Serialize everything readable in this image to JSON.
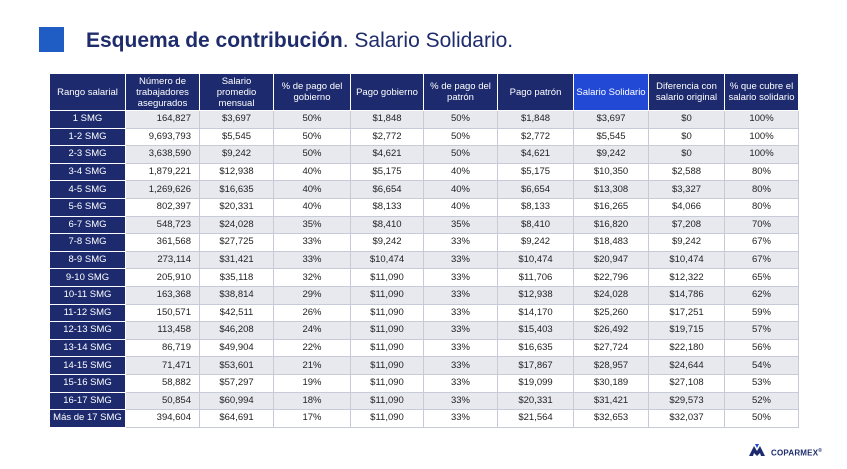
{
  "title": {
    "bold": "Esquema de contribución",
    "rest": ". Salario Solidario."
  },
  "headers": [
    "Rango salarial",
    "Número de trabajadores asegurados",
    "Salario promedio mensual",
    "% de pago del gobierno",
    "Pago gobierno",
    "% de pago del patrón",
    "Pago patrón",
    "Salario Solidario",
    "Diferencia con salario original",
    "% que cubre el salario solidario"
  ],
  "rows": [
    [
      "1 SMG",
      "164,827",
      "$3,697",
      "50%",
      "$1,848",
      "50%",
      "$1,848",
      "$3,697",
      "$0",
      "100%"
    ],
    [
      "1-2 SMG",
      "9,693,793",
      "$5,545",
      "50%",
      "$2,772",
      "50%",
      "$2,772",
      "$5,545",
      "$0",
      "100%"
    ],
    [
      "2-3 SMG",
      "3,638,590",
      "$9,242",
      "50%",
      "$4,621",
      "50%",
      "$4,621",
      "$9,242",
      "$0",
      "100%"
    ],
    [
      "3-4 SMG",
      "1,879,221",
      "$12,938",
      "40%",
      "$5,175",
      "40%",
      "$5,175",
      "$10,350",
      "$2,588",
      "80%"
    ],
    [
      "4-5 SMG",
      "1,269,626",
      "$16,635",
      "40%",
      "$6,654",
      "40%",
      "$6,654",
      "$13,308",
      "$3,327",
      "80%"
    ],
    [
      "5-6 SMG",
      "802,397",
      "$20,331",
      "40%",
      "$8,133",
      "40%",
      "$8,133",
      "$16,265",
      "$4,066",
      "80%"
    ],
    [
      "6-7 SMG",
      "548,723",
      "$24,028",
      "35%",
      "$8,410",
      "35%",
      "$8,410",
      "$16,820",
      "$7,208",
      "70%"
    ],
    [
      "7-8 SMG",
      "361,568",
      "$27,725",
      "33%",
      "$9,242",
      "33%",
      "$9,242",
      "$18,483",
      "$9,242",
      "67%"
    ],
    [
      "8-9 SMG",
      "273,114",
      "$31,421",
      "33%",
      "$10,474",
      "33%",
      "$10,474",
      "$20,947",
      "$10,474",
      "67%"
    ],
    [
      "9-10 SMG",
      "205,910",
      "$35,118",
      "32%",
      "$11,090",
      "33%",
      "$11,706",
      "$22,796",
      "$12,322",
      "65%"
    ],
    [
      "10-11 SMG",
      "163,368",
      "$38,814",
      "29%",
      "$11,090",
      "33%",
      "$12,938",
      "$24,028",
      "$14,786",
      "62%"
    ],
    [
      "11-12 SMG",
      "150,571",
      "$42,511",
      "26%",
      "$11,090",
      "33%",
      "$14,170",
      "$25,260",
      "$17,251",
      "59%"
    ],
    [
      "12-13 SMG",
      "113,458",
      "$46,208",
      "24%",
      "$11,090",
      "33%",
      "$15,403",
      "$26,492",
      "$19,715",
      "57%"
    ],
    [
      "13-14 SMG",
      "86,719",
      "$49,904",
      "22%",
      "$11,090",
      "33%",
      "$16,635",
      "$27,724",
      "$22,180",
      "56%"
    ],
    [
      "14-15 SMG",
      "71,471",
      "$53,601",
      "21%",
      "$11,090",
      "33%",
      "$17,867",
      "$28,957",
      "$24,644",
      "54%"
    ],
    [
      "15-16 SMG",
      "58,882",
      "$57,297",
      "19%",
      "$11,090",
      "33%",
      "$19,099",
      "$30,189",
      "$27,108",
      "53%"
    ],
    [
      "16-17 SMG",
      "50,854",
      "$60,994",
      "18%",
      "$11,090",
      "33%",
      "$20,331",
      "$31,421",
      "$29,573",
      "52%"
    ],
    [
      "Más de 17 SMG",
      "394,604",
      "$64,691",
      "17%",
      "$11,090",
      "33%",
      "$21,564",
      "$32,653",
      "$32,037",
      "50%"
    ]
  ],
  "logo": {
    "text": "COPARMEX",
    "mark": "®",
    "icon": "coparmex-logo-icon"
  },
  "colors": {
    "header_bg": "#1d2b6e",
    "highlight_header_bg": "#2249d6",
    "title": "#1f2c6b",
    "accent_square": "#1f5cc4"
  }
}
